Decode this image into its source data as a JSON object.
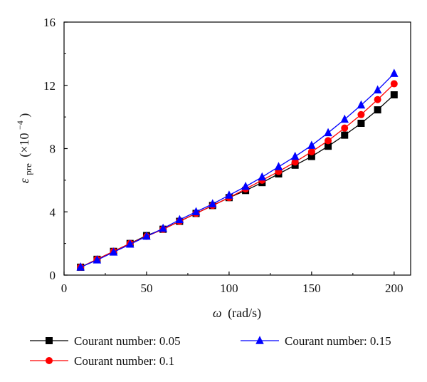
{
  "chart_data": {
    "type": "line",
    "title": "",
    "xlabel": {
      "symbol": "ω",
      "unit": "(rad/s)"
    },
    "ylabel": {
      "symbol": "ε",
      "subscript": "pre",
      "scale_prefix": "(×10",
      "scale_exp": "−4",
      "scale_suffix": ")"
    },
    "xlim": [
      0,
      210
    ],
    "ylim": [
      0,
      16
    ],
    "xticks": [
      0,
      50,
      100,
      150,
      200
    ],
    "yticks": [
      0,
      4,
      8,
      12,
      16
    ],
    "grid": false,
    "legend_position": "bottom",
    "x": [
      10,
      20,
      30,
      40,
      50,
      60,
      70,
      80,
      90,
      100,
      110,
      120,
      130,
      140,
      150,
      160,
      170,
      180,
      190,
      200
    ],
    "series": [
      {
        "name": "Courant number: 0.05",
        "color": "#000000",
        "marker": "square",
        "values": [
          0.5,
          1.0,
          1.5,
          2.0,
          2.5,
          2.9,
          3.4,
          3.9,
          4.4,
          4.9,
          5.35,
          5.85,
          6.4,
          6.95,
          7.5,
          8.15,
          8.85,
          9.6,
          10.45,
          11.4
        ]
      },
      {
        "name": "Courant number: 0.1",
        "color": "#ff0000",
        "marker": "circle",
        "values": [
          0.5,
          1.0,
          1.5,
          2.0,
          2.45,
          2.9,
          3.4,
          3.9,
          4.4,
          4.9,
          5.45,
          6.0,
          6.55,
          7.15,
          7.8,
          8.5,
          9.3,
          10.15,
          11.1,
          12.1
        ]
      },
      {
        "name": "Courant number: 0.15",
        "color": "#0000ff",
        "marker": "triangle",
        "values": [
          0.5,
          0.95,
          1.45,
          1.95,
          2.45,
          2.95,
          3.5,
          4.0,
          4.5,
          5.05,
          5.6,
          6.2,
          6.85,
          7.5,
          8.2,
          9.0,
          9.85,
          10.75,
          11.7,
          12.75
        ]
      }
    ]
  }
}
